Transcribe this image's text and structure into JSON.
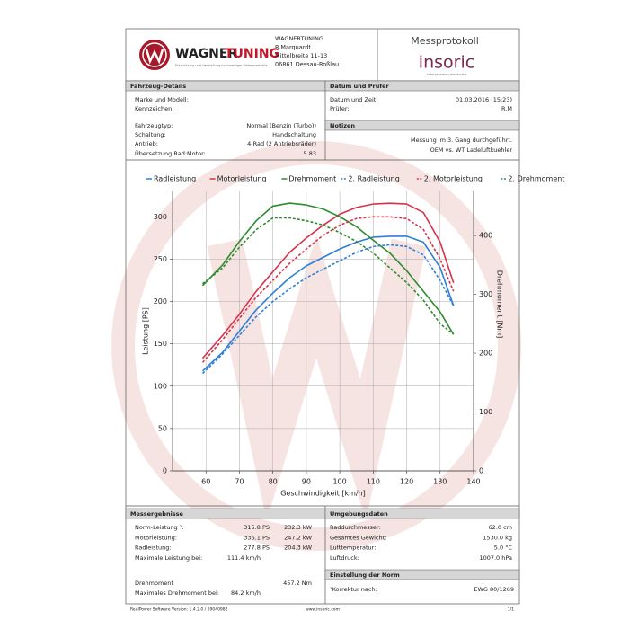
{
  "header": {
    "logo_part1": "WAGNER",
    "logo_part2": "TUNING",
    "logo_tagline": "Entwicklung und Herstellung hochwertiger Motorsportteile",
    "address": [
      "WAGNERTUNING",
      "R.Marquardt",
      "Mittelbreite 11-13",
      "06861 Dessau-Roßlau"
    ],
    "protocol_title": "Messprotokoll",
    "brand": "insoric",
    "brand_tagline": "solid precision measuring"
  },
  "vehicle": {
    "title": "Fahrzeug-Details",
    "rows": [
      {
        "label": "Marke und Modell:"
      },
      {
        "label": "Kennzeichen:"
      },
      {
        "label": "Fahrzeugtyp:",
        "value": "Normal (Benzin (Turbo))"
      },
      {
        "label": "Schaltung:",
        "value": "Handschaltung"
      },
      {
        "label": "Antrieb:",
        "value": "4-Rad (2 Antriebsräder)"
      },
      {
        "label": "Übersetzung Rad:Motor:",
        "value": "5.83"
      }
    ]
  },
  "test": {
    "title": "Datum und Prüfer",
    "rows": [
      {
        "label": "Datum und Zeit:",
        "value": "01.03.2016 (15:23)"
      },
      {
        "label": "Prüfer:",
        "value": "R.M"
      }
    ]
  },
  "notes": {
    "title": "Notizen",
    "lines": [
      "Messung im 3. Gang durchgeführt.",
      "OEM vs. WT Ladeluftkuehler"
    ]
  },
  "chart_data": {
    "type": "line",
    "x_label": "Geschwindigkeit [km/h]",
    "y_label": "Leistung [PS]",
    "y2_label": "Drehmoment [Nm]",
    "x": [
      59,
      65,
      70,
      75,
      80,
      85,
      90,
      95,
      100,
      105,
      110,
      115,
      120,
      125,
      130,
      134
    ],
    "xlim": [
      50,
      140
    ],
    "xticks": [
      60,
      70,
      80,
      90,
      100,
      110,
      120,
      130,
      140
    ],
    "ylim": [
      0,
      330
    ],
    "yticks": [
      0,
      50,
      100,
      150,
      200,
      250,
      300
    ],
    "y2lim": [
      0,
      475
    ],
    "y2ticks": [
      0,
      100,
      200,
      300,
      400
    ],
    "grid": true,
    "series": [
      {
        "name": "Radleistung",
        "color": "#2f7fd8",
        "dashed": false,
        "axis": "y",
        "values": [
          118,
          140,
          165,
          190,
          210,
          228,
          242,
          252,
          262,
          270,
          276,
          277,
          277,
          270,
          240,
          195
        ]
      },
      {
        "name": "Motorleistung",
        "color": "#d8314a",
        "dashed": false,
        "axis": "y",
        "values": [
          133,
          160,
          185,
          212,
          235,
          258,
          275,
          290,
          303,
          311,
          315,
          316,
          315,
          305,
          270,
          222
        ]
      },
      {
        "name": "Drehmoment",
        "color": "#2e8b2e",
        "dashed": false,
        "axis": "y2",
        "values": [
          315,
          350,
          390,
          425,
          450,
          455,
          452,
          445,
          432,
          415,
          392,
          370,
          340,
          305,
          270,
          232
        ]
      },
      {
        "name": "2. Radleistung",
        "color": "#2f7fd8",
        "dashed": true,
        "axis": "y",
        "values": [
          115,
          138,
          160,
          182,
          200,
          215,
          228,
          238,
          248,
          258,
          265,
          267,
          265,
          255,
          225,
          195
        ]
      },
      {
        "name": "2. Motorleistung",
        "color": "#d8314a",
        "dashed": true,
        "axis": "y",
        "values": [
          128,
          155,
          180,
          205,
          225,
          245,
          262,
          278,
          290,
          298,
          300,
          300,
          298,
          285,
          250,
          212
        ]
      },
      {
        "name": "2. Drehmoment",
        "color": "#2e8b2e",
        "dashed": true,
        "axis": "y2",
        "values": [
          318,
          345,
          380,
          410,
          430,
          430,
          425,
          418,
          405,
          390,
          370,
          345,
          320,
          290,
          250,
          232
        ]
      }
    ]
  },
  "results": {
    "title": "Messergebnisse",
    "power_rows": [
      {
        "label": "Norm-Leistung ¹:",
        "ps": "315.8 PS",
        "kw": "232.3 kW",
        "color": "#d8314a"
      },
      {
        "label": "Motorleistung:",
        "ps": "336.1 PS",
        "kw": "247.2 kW",
        "color": "#d8314a"
      },
      {
        "label": "Radleistung:",
        "ps": "277.8 PS",
        "kw": "204.3 kW",
        "color": "#2f7fd8"
      }
    ],
    "max_power": {
      "label": "Maximale Leistung bei:",
      "value": "111.4 km/h"
    },
    "torque": {
      "label": "Drehmoment",
      "value": "457.2 Nm",
      "color": "#2e8b2e"
    },
    "max_torque": {
      "label": "Maximales Drehmoment bei:",
      "value": "84.2 km/h"
    }
  },
  "environment": {
    "title": "Umgebungsdaten",
    "rows": [
      {
        "label": "Raddurchmesser:",
        "value": "62.0 cm"
      },
      {
        "label": "Gesamtes Gewicht:",
        "value": "1530.0 kg"
      },
      {
        "label": "Lufttemperatur:",
        "value": "5.0 °C"
      },
      {
        "label": "Luftdruck:",
        "value": "1007.0 hPa"
      }
    ]
  },
  "norm": {
    "title": "Einstellung der Norm",
    "label": "¹Korrektur nach:",
    "value": "EWG 80/1269"
  },
  "footer": {
    "software": "RealPower Software Version: 1.4.2.0 / 69040982",
    "website": "www.insoric.com",
    "page": "1/1"
  }
}
